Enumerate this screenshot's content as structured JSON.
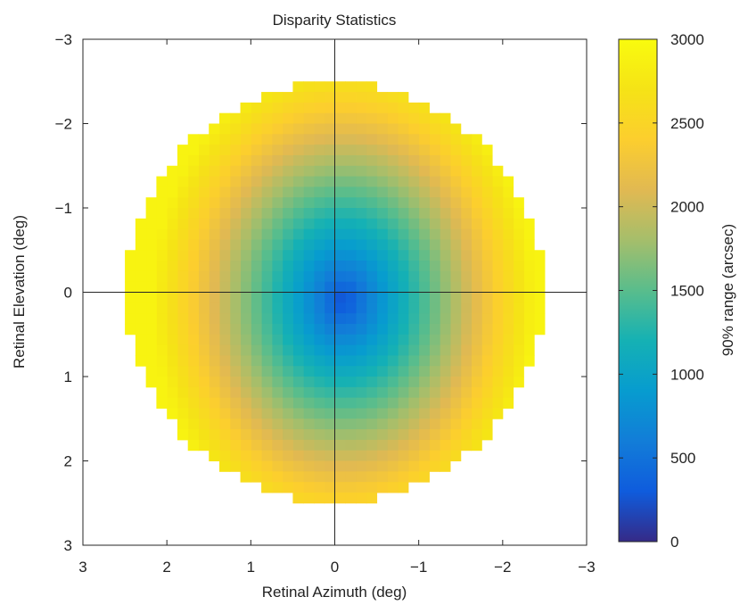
{
  "chart_data": {
    "type": "heatmap",
    "title": "Disparity Statistics",
    "xlabel": "Retinal Azimuth (deg)",
    "ylabel": "Retinal Elevation (deg)",
    "xlim": [
      3,
      -3
    ],
    "ylim": [
      -3,
      3
    ],
    "x_reversed": true,
    "y_reversed": true,
    "x_ticks": [
      3,
      2,
      1,
      0,
      -1,
      -2,
      -3
    ],
    "x_tick_labels": [
      "3",
      "2",
      "1",
      "0",
      "−1",
      "−2",
      "−3"
    ],
    "y_ticks": [
      -3,
      -2,
      -1,
      0,
      1,
      2,
      3
    ],
    "y_tick_labels": [
      "−3",
      "−2",
      "−1",
      "0",
      "1",
      "2",
      "3"
    ],
    "grid": false,
    "crosshair_at_origin": true,
    "field_radius_deg": 2.5,
    "cell_size_deg": 0.125,
    "colormap": "parula",
    "min_value_near_center": 200,
    "max_value_at_edge": 2900,
    "colorbar": {
      "label": "90% range (arcsec)",
      "range": [
        0,
        3000
      ],
      "ticks": [
        0,
        500,
        1000,
        1500,
        2000,
        2500,
        3000
      ],
      "tick_labels": [
        "0",
        "500",
        "1000",
        "1500",
        "2000",
        "2500",
        "3000"
      ],
      "position": "right"
    }
  }
}
